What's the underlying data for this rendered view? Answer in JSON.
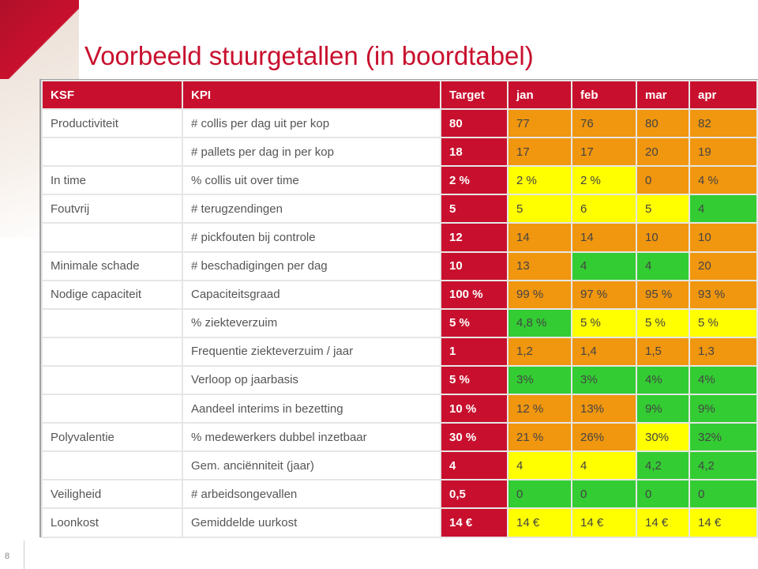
{
  "title": "Voorbeeld stuurgetallen (in boordtabel)",
  "slide_number": "8",
  "table": {
    "header": [
      "KSF",
      "KPI",
      "Target",
      "jan",
      "feb",
      "mar",
      "apr"
    ],
    "rows": [
      {
        "ksf": "Productiviteit",
        "kpi": "# collis per dag uit per kop",
        "cells": [
          {
            "text": "80",
            "color": "#c8102e"
          },
          {
            "text": "77",
            "color": "#f0960f"
          },
          {
            "text": "76",
            "color": "#f0960f"
          },
          {
            "text": "80",
            "color": "#f0960f"
          },
          {
            "text": "82",
            "color": "#f0960f"
          }
        ]
      },
      {
        "kpi": "# pallets per dag in per kop",
        "cells": [
          {
            "text": "18",
            "color": "#c8102e"
          },
          {
            "text": "17",
            "color": "#f0960f"
          },
          {
            "text": "17",
            "color": "#f0960f"
          },
          {
            "text": "20",
            "color": "#f0960f"
          },
          {
            "text": "19",
            "color": "#f0960f"
          }
        ]
      },
      {
        "ksf": "In time",
        "kpi": "% collis uit over time",
        "cells": [
          {
            "text": "2 %",
            "color": "#c8102e"
          },
          {
            "text": "2 %",
            "color": "#ffff00"
          },
          {
            "text": "2 %",
            "color": "#ffff00"
          },
          {
            "text": "0",
            "color": "#f0960f"
          },
          {
            "text": "4 %",
            "color": "#f0960f"
          }
        ]
      },
      {
        "ksf": "Foutvrij",
        "kpi": "# terugzendingen",
        "cells": [
          {
            "text": "5",
            "color": "#c8102e"
          },
          {
            "text": "5",
            "color": "#ffff00"
          },
          {
            "text": "6",
            "color": "#ffff00"
          },
          {
            "text": "5",
            "color": "#ffff00"
          },
          {
            "text": "4",
            "color": "#33cc33"
          }
        ]
      },
      {
        "kpi": "# pickfouten bij controle",
        "cells": [
          {
            "text": "12",
            "color": "#c8102e"
          },
          {
            "text": "14",
            "color": "#f0960f"
          },
          {
            "text": "14",
            "color": "#f0960f"
          },
          {
            "text": "10",
            "color": "#f0960f"
          },
          {
            "text": "10",
            "color": "#f0960f"
          }
        ]
      },
      {
        "ksf": "Minimale schade",
        "kpi": "# beschadigingen per dag",
        "cells": [
          {
            "text": "10",
            "color": "#c8102e"
          },
          {
            "text": "13",
            "color": "#f0960f"
          },
          {
            "text": "4",
            "color": "#33cc33"
          },
          {
            "text": "4",
            "color": "#33cc33"
          },
          {
            "text": "20",
            "color": "#f0960f"
          }
        ]
      },
      {
        "ksf": "Nodige capaciteit",
        "kpi": "Capaciteitsgraad",
        "cells": [
          {
            "text": "100 %",
            "color": "#c8102e"
          },
          {
            "text": "99 %",
            "color": "#f0960f"
          },
          {
            "text": "97 %",
            "color": "#f0960f"
          },
          {
            "text": "95 %",
            "color": "#f0960f"
          },
          {
            "text": "93 %",
            "color": "#f0960f"
          }
        ]
      },
      {
        "kpi": "% ziekteverzuim",
        "cells": [
          {
            "text": "5 %",
            "color": "#c8102e"
          },
          {
            "text": "4,8 %",
            "color": "#33cc33"
          },
          {
            "text": "5 %",
            "color": "#ffff00"
          },
          {
            "text": "5 %",
            "color": "#ffff00"
          },
          {
            "text": "5 %",
            "color": "#ffff00"
          }
        ]
      },
      {
        "kpi": "Frequentie ziekteverzuim / jaar",
        "cells": [
          {
            "text": "1",
            "color": "#c8102e"
          },
          {
            "text": "1,2",
            "color": "#f0960f"
          },
          {
            "text": "1,4",
            "color": "#f0960f"
          },
          {
            "text": "1,5",
            "color": "#f0960f"
          },
          {
            "text": "1,3",
            "color": "#f0960f"
          }
        ]
      },
      {
        "kpi": "Verloop op jaarbasis",
        "cells": [
          {
            "text": "5 %",
            "color": "#c8102e"
          },
          {
            "text": "3%",
            "color": "#33cc33"
          },
          {
            "text": "3%",
            "color": "#33cc33"
          },
          {
            "text": "4%",
            "color": "#33cc33"
          },
          {
            "text": "4%",
            "color": "#33cc33"
          }
        ]
      },
      {
        "kpi": "Aandeel interims in bezetting",
        "cells": [
          {
            "text": "10 %",
            "color": "#c8102e"
          },
          {
            "text": "12 %",
            "color": "#f0960f"
          },
          {
            "text": "13%",
            "color": "#f0960f"
          },
          {
            "text": "9%",
            "color": "#33cc33"
          },
          {
            "text": "9%",
            "color": "#33cc33"
          }
        ]
      },
      {
        "ksf": "Polyvalentie",
        "kpi": "% medewerkers dubbel inzetbaar",
        "cells": [
          {
            "text": "30 %",
            "color": "#c8102e"
          },
          {
            "text": "21 %",
            "color": "#f0960f"
          },
          {
            "text": "26%",
            "color": "#f0960f"
          },
          {
            "text": "30%",
            "color": "#ffff00"
          },
          {
            "text": "32%",
            "color": "#33cc33"
          }
        ]
      },
      {
        "kpi": "Gem. anciënniteit (jaar)",
        "cells": [
          {
            "text": "4",
            "color": "#c8102e"
          },
          {
            "text": "4",
            "color": "#ffff00"
          },
          {
            "text": "4",
            "color": "#ffff00"
          },
          {
            "text": "4,2",
            "color": "#33cc33"
          },
          {
            "text": "4,2",
            "color": "#33cc33"
          }
        ]
      },
      {
        "ksf": "Veiligheid",
        "kpi": "# arbeidsongevallen",
        "cells": [
          {
            "text": "0,5",
            "color": "#c8102e"
          },
          {
            "text": "0",
            "color": "#33cc33"
          },
          {
            "text": "0",
            "color": "#33cc33"
          },
          {
            "text": "0",
            "color": "#33cc33"
          },
          {
            "text": "0",
            "color": "#33cc33"
          }
        ]
      },
      {
        "ksf": "Loonkost",
        "kpi": "Gemiddelde uurkost",
        "cells": [
          {
            "text": "14 €",
            "color": "#c8102e"
          },
          {
            "text": "14 €",
            "color": "#ffff00"
          },
          {
            "text": "14 €",
            "color": "#ffff00"
          },
          {
            "text": "14 €",
            "color": "#ffff00"
          },
          {
            "text": "14 €",
            "color": "#ffff00"
          }
        ]
      }
    ]
  }
}
